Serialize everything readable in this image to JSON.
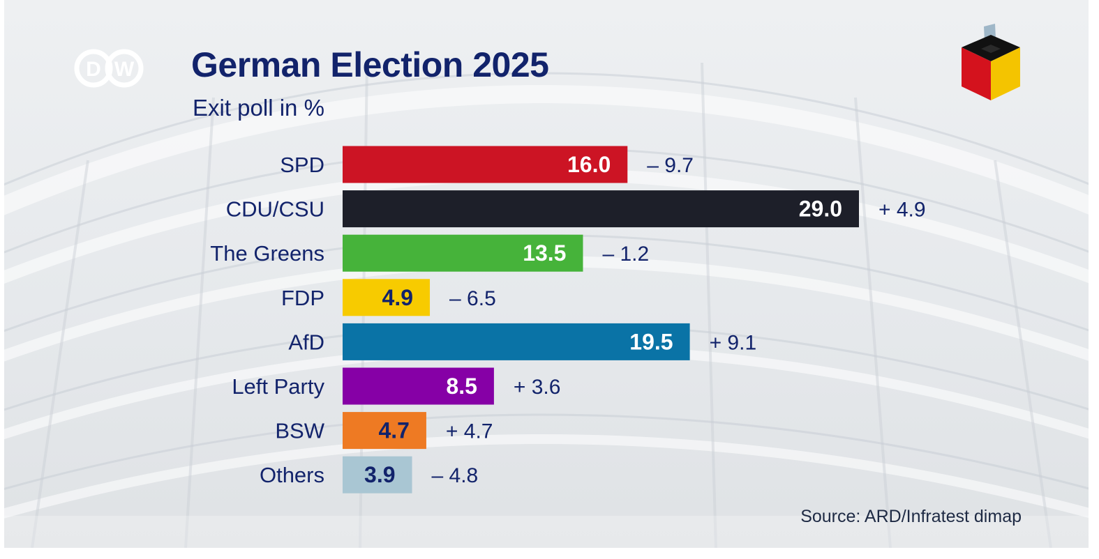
{
  "header": {
    "logo_text": "DW",
    "title": "German Election 2025",
    "subtitle": "Exit poll in %"
  },
  "source": "Source: ARD/Infratest dimap",
  "chart_data": {
    "type": "bar",
    "orientation": "horizontal",
    "title": "German Election 2025",
    "subtitle": "Exit poll in %",
    "categories": [
      "SPD",
      "CDU/CSU",
      "The Greens",
      "FDP",
      "AfD",
      "Left Party",
      "BSW",
      "Others"
    ],
    "values": [
      16.0,
      29.0,
      13.5,
      4.9,
      19.5,
      8.5,
      4.7,
      3.9
    ],
    "value_labels": [
      "16.0",
      "29.0",
      "13.5",
      "4.9",
      "19.5",
      "8.5",
      "4.7",
      "3.9"
    ],
    "change_labels": [
      "– 9.7",
      "+ 4.9",
      "– 1.2",
      "– 6.5",
      "+ 9.1",
      "+ 3.6",
      "+ 4.7",
      "– 4.8"
    ],
    "colors": [
      "#cc1424",
      "#1d1f29",
      "#46b33a",
      "#f7cb00",
      "#0a73a6",
      "#8600a6",
      "#ee7a23",
      "#a9c6d3"
    ],
    "value_label_colors": [
      "#ffffff",
      "#ffffff",
      "#ffffff",
      "#12236b",
      "#ffffff",
      "#ffffff",
      "#12236b",
      "#12236b"
    ],
    "xlim": [
      0,
      29
    ],
    "grid": false,
    "legend": "none"
  }
}
